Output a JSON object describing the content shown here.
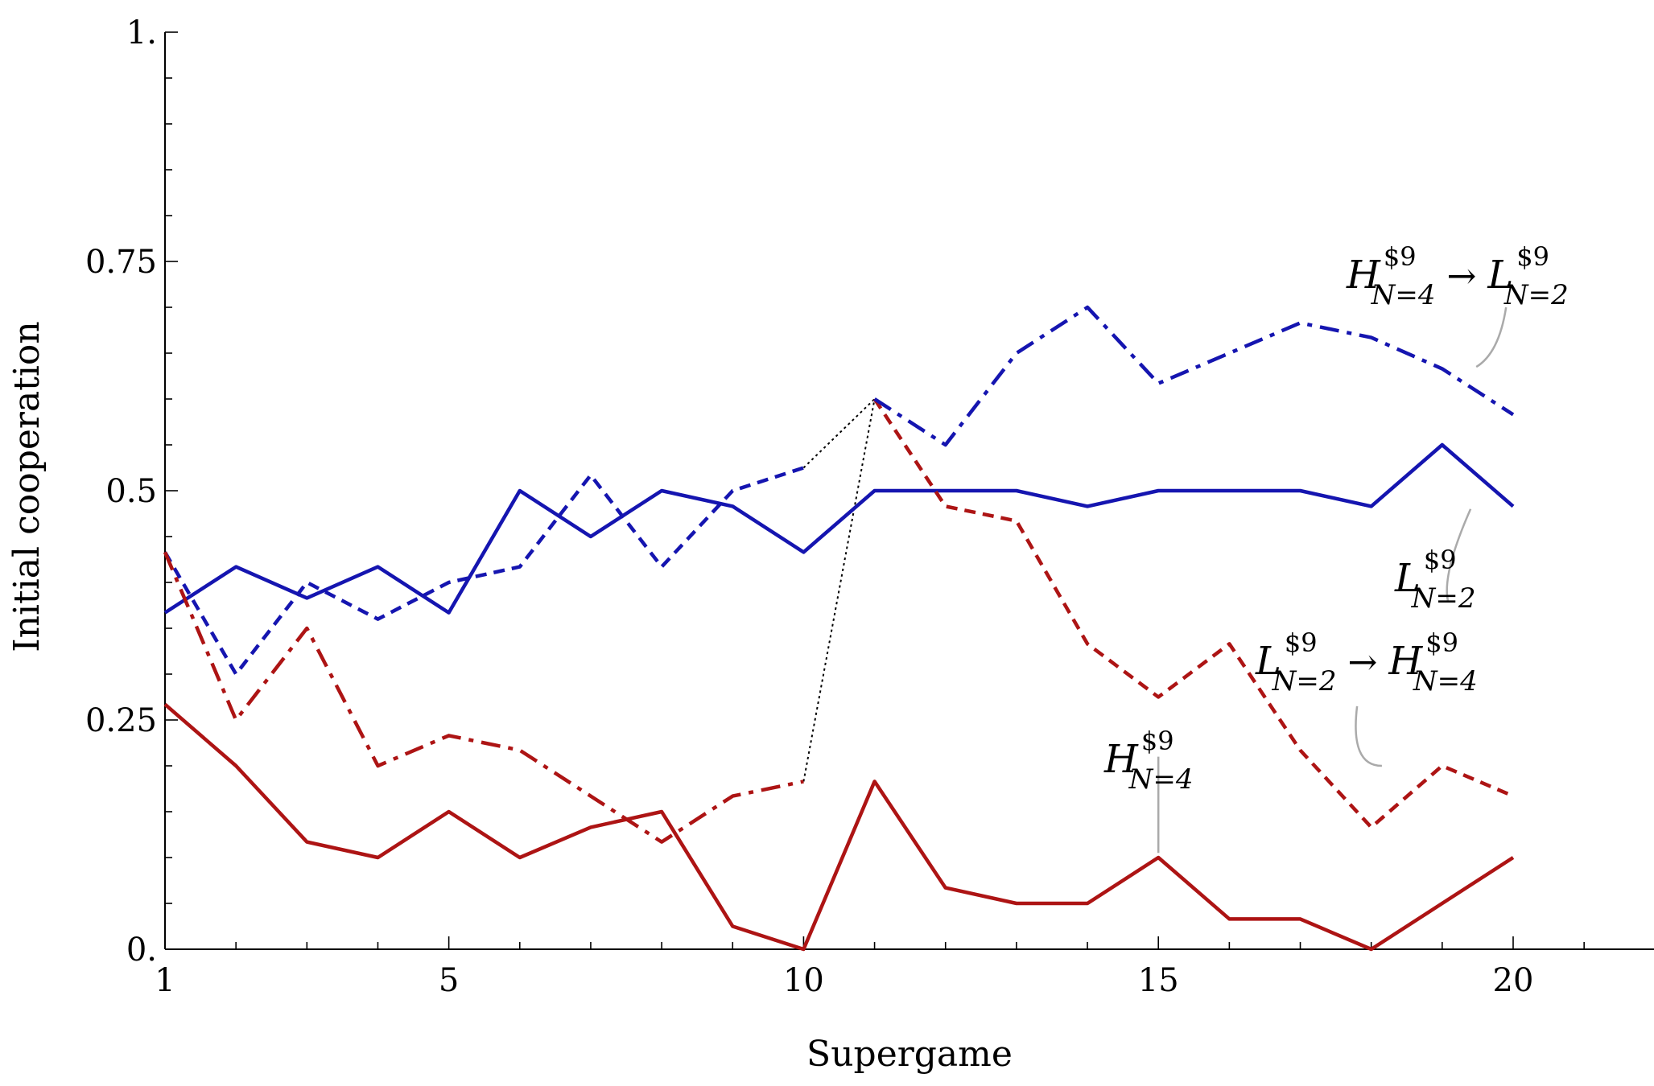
{
  "chart_data": {
    "type": "line",
    "title": "",
    "xlabel": "Supergame",
    "ylabel": "Initial cooperation",
    "xlim": [
      1,
      22
    ],
    "ylim": [
      0,
      1
    ],
    "x_ticks": [
      1,
      5,
      10,
      15,
      20
    ],
    "x_tick_labels": [
      "1",
      "5",
      "10",
      "15",
      "20"
    ],
    "y_ticks": [
      0,
      0.25,
      0.5,
      0.75,
      1
    ],
    "y_tick_labels": [
      "0.",
      "0.25",
      "0.5",
      "0.75",
      "1."
    ],
    "grid": false,
    "colors": {
      "blue": "#1515b0",
      "red": "#ad1414",
      "connector": "#000000",
      "leader": "#aaaaaa"
    },
    "series": [
      {
        "key": "L_solid",
        "color": "blue",
        "dash": "solid",
        "label": {
          "base": "L",
          "sup": "$9",
          "sub": "N=2"
        },
        "x": [
          1,
          2,
          3,
          4,
          5,
          6,
          7,
          8,
          9,
          10,
          11,
          12,
          13,
          14,
          15,
          16,
          17,
          18,
          19,
          20
        ],
        "y": [
          0.367,
          0.417,
          0.383,
          0.417,
          0.367,
          0.5,
          0.45,
          0.5,
          0.483,
          0.433,
          0.5,
          0.5,
          0.5,
          0.483,
          0.5,
          0.5,
          0.5,
          0.483,
          0.55,
          0.483
        ]
      },
      {
        "key": "H_solid",
        "color": "red",
        "dash": "solid",
        "label": {
          "base": "H",
          "sup": "$9",
          "sub": "N=4"
        },
        "x": [
          1,
          2,
          3,
          4,
          5,
          6,
          7,
          8,
          9,
          10,
          11,
          12,
          13,
          14,
          15,
          16,
          17,
          18,
          19,
          20
        ],
        "y": [
          0.267,
          0.2,
          0.117,
          0.1,
          0.15,
          0.1,
          0.133,
          0.15,
          0.025,
          0.0,
          0.183,
          0.067,
          0.05,
          0.05,
          0.1,
          0.033,
          0.033,
          0.0,
          0.05,
          0.1
        ]
      },
      {
        "key": "L_to_H_phase1",
        "color": "blue",
        "dash": "dashed",
        "x": [
          1,
          2,
          3,
          4,
          5,
          6,
          7,
          8,
          9,
          10
        ],
        "y": [
          0.433,
          0.3,
          0.4,
          0.36,
          0.4,
          0.417,
          0.517,
          0.417,
          0.5,
          0.525
        ]
      },
      {
        "key": "L_to_H_phase2",
        "color": "red",
        "dash": "dashed",
        "label": {
          "from_base": "L",
          "from_sup": "$9",
          "from_sub": "N=2",
          "arrow": "→",
          "to_base": "H",
          "to_sup": "$9",
          "to_sub": "N=4"
        },
        "x": [
          11,
          12,
          13,
          14,
          15,
          16,
          17,
          18,
          19,
          20
        ],
        "y": [
          0.6,
          0.483,
          0.467,
          0.333,
          0.275,
          0.333,
          0.217,
          0.133,
          0.2,
          0.167
        ]
      },
      {
        "key": "H_to_L_phase1",
        "color": "red",
        "dash": "dashdot",
        "x": [
          1,
          2,
          3,
          4,
          5,
          6,
          7,
          8,
          9,
          10
        ],
        "y": [
          0.433,
          0.25,
          0.35,
          0.2,
          0.233,
          0.217,
          0.167,
          0.117,
          0.167,
          0.183
        ]
      },
      {
        "key": "H_to_L_phase2",
        "color": "blue",
        "dash": "dashdot",
        "label": {
          "from_base": "H",
          "from_sup": "$9",
          "from_sub": "N=4",
          "arrow": "→",
          "to_base": "L",
          "to_sup": "$9",
          "to_sub": "N=2"
        },
        "x": [
          11,
          12,
          13,
          14,
          15,
          16,
          17,
          18,
          19,
          20
        ],
        "y": [
          0.6,
          0.55,
          0.65,
          0.7,
          0.617,
          0.65,
          0.683,
          0.667,
          0.633,
          0.583
        ]
      }
    ],
    "connectors": [
      {
        "x": [
          10,
          11
        ],
        "y": [
          0.525,
          0.6
        ]
      },
      {
        "x": [
          10,
          11
        ],
        "y": [
          0.183,
          0.6
        ]
      }
    ]
  }
}
